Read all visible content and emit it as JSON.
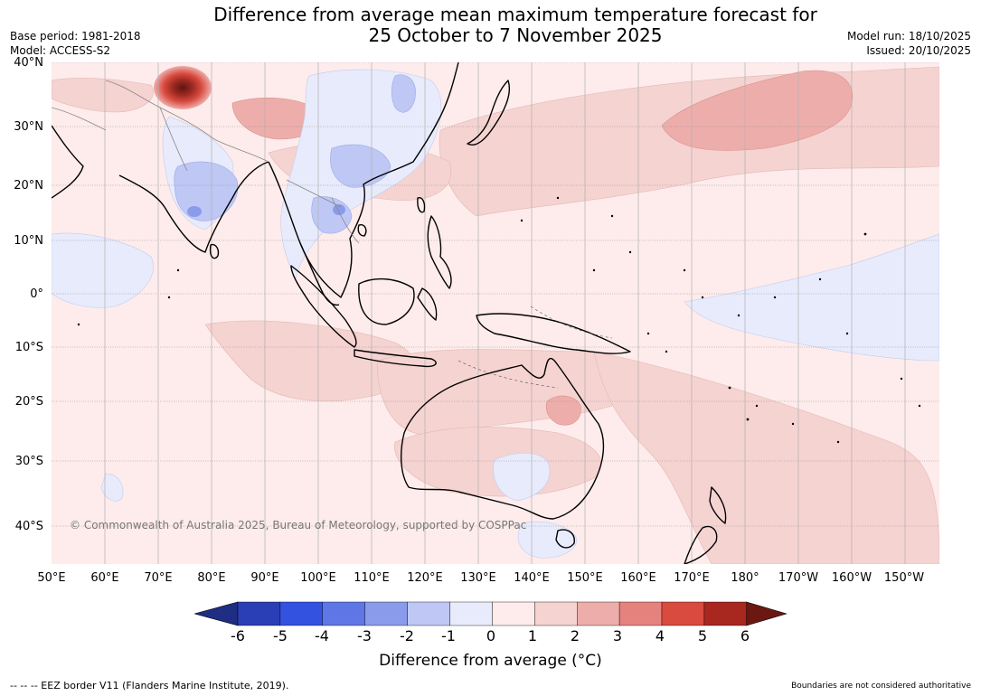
{
  "title_line1": "Difference from average mean maximum temperature forecast for",
  "title_line2": "25 October to 7 November 2025",
  "meta_left": {
    "base_period": "Base period: 1981-2018",
    "model": "Model: ACCESS-S2"
  },
  "meta_right": {
    "model_run": "Model run: 18/10/2025",
    "issued": "Issued: 20/10/2025"
  },
  "latitude_labels": [
    "40°N",
    "30°N",
    "20°N",
    "10°N",
    "0°",
    "10°S",
    "20°S",
    "30°S",
    "40°S"
  ],
  "longitude_labels": [
    "50°E",
    "60°E",
    "70°E",
    "80°E",
    "90°E",
    "100°E",
    "110°E",
    "120°E",
    "130°E",
    "140°E",
    "150°E",
    "160°E",
    "170°E",
    "180°",
    "170°W",
    "160°W",
    "150°W"
  ],
  "copyright": "© Commonwealth of Australia 2025, Bureau of Meteorology, supported by COSPPac",
  "colorbar": {
    "ticks": [
      "-6",
      "-5",
      "-4",
      "-3",
      "-2",
      "-1",
      "0",
      "1",
      "2",
      "3",
      "4",
      "5",
      "6"
    ],
    "colors": [
      "#1f2d82",
      "#2a3eb5",
      "#3352e0",
      "#5e76e6",
      "#8a9bec",
      "#bfc8f4",
      "#e8ebfb",
      "#fdeceb",
      "#f5d3d1",
      "#edaeab",
      "#e5827d",
      "#d94a3f",
      "#a8271f",
      "#6b1812"
    ],
    "label": "Difference from average (°C)"
  },
  "footer_left": "--  --  -- EEZ border V11 (Flanders Marine Institute, 2019).",
  "footer_right": "Boundaries are not considered authoritative"
}
